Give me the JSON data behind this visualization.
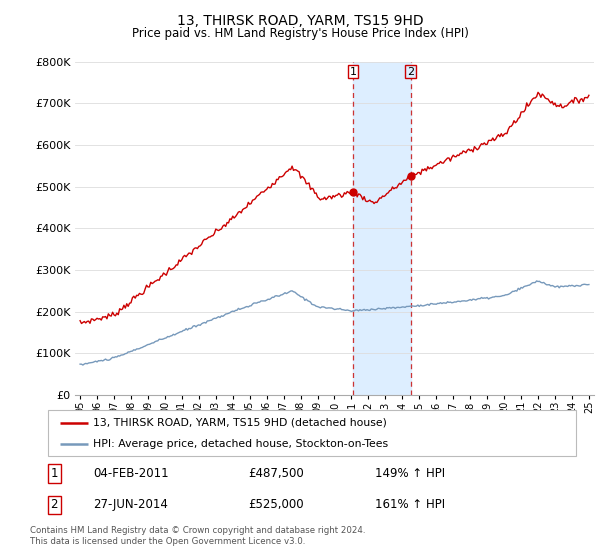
{
  "title": "13, THIRSK ROAD, YARM, TS15 9HD",
  "subtitle": "Price paid vs. HM Land Registry's House Price Index (HPI)",
  "legend_line1": "13, THIRSK ROAD, YARM, TS15 9HD (detached house)",
  "legend_line2": "HPI: Average price, detached house, Stockton-on-Tees",
  "annotation1_label": "1",
  "annotation1_date": "04-FEB-2011",
  "annotation1_price": "£487,500",
  "annotation1_hpi": "149% ↑ HPI",
  "annotation2_label": "2",
  "annotation2_date": "27-JUN-2014",
  "annotation2_price": "£525,000",
  "annotation2_hpi": "161% ↑ HPI",
  "footnote": "Contains HM Land Registry data © Crown copyright and database right 2024.\nThis data is licensed under the Open Government Licence v3.0.",
  "red_color": "#cc0000",
  "blue_color": "#7799bb",
  "shade_color": "#ddeeff",
  "sale1_x": 2011.09,
  "sale1_y": 487500,
  "sale2_x": 2014.49,
  "sale2_y": 525000,
  "ylim": [
    0,
    800000
  ],
  "xlim": [
    1994.7,
    2025.3
  ]
}
